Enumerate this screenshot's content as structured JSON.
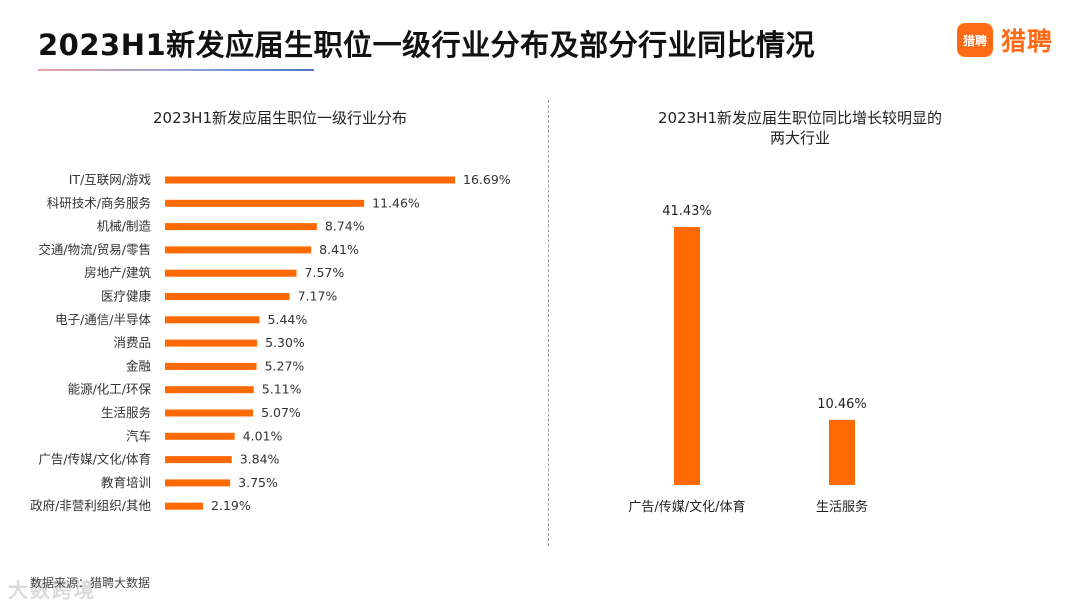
{
  "header": {
    "title": "2023H1新发应届生职位一级行业分布及部分行业同比情况",
    "logo_badge": "猎聘",
    "logo_text": "猎聘"
  },
  "source": "数据来源：猎聘大数据",
  "watermark": "大数跨境",
  "colors": {
    "bar": "#ff6a00",
    "accent": "#ff6a14"
  },
  "chart_data": [
    {
      "type": "bar",
      "orientation": "horizontal",
      "title": "2023H1新发应届生职位一级行业分布",
      "categories": [
        "IT/互联网/游戏",
        "科研技术/商务服务",
        "机械/制造",
        "交通/物流/贸易/零售",
        "房地产/建筑",
        "医疗健康",
        "电子/通信/半导体",
        "消费品",
        "金融",
        "能源/化工/环保",
        "生活服务",
        "汽车",
        "广告/传媒/文化/体育",
        "教育培训",
        "政府/非营利组织/其他"
      ],
      "values": [
        16.69,
        11.46,
        8.74,
        8.41,
        7.57,
        7.17,
        5.44,
        5.3,
        5.27,
        5.11,
        5.07,
        4.01,
        3.84,
        3.75,
        2.19
      ],
      "value_labels": [
        "16.69%",
        "11.46%",
        "8.74%",
        "8.41%",
        "7.57%",
        "7.17%",
        "5.44%",
        "5.30%",
        "5.27%",
        "5.11%",
        "5.07%",
        "4.01%",
        "3.84%",
        "3.75%",
        "2.19%"
      ],
      "xlim": [
        0,
        16.69
      ],
      "grid": false,
      "legend": "none"
    },
    {
      "type": "bar",
      "orientation": "vertical",
      "title": "2023H1新发应届生职位同比增长较明显的\n两大行业",
      "categories": [
        "广告/传媒/文化/体育",
        "生活服务"
      ],
      "values": [
        41.43,
        10.46
      ],
      "value_labels": [
        "41.43%",
        "10.46%"
      ],
      "ylim": [
        0,
        41.43
      ],
      "grid": false,
      "legend": "none"
    }
  ]
}
